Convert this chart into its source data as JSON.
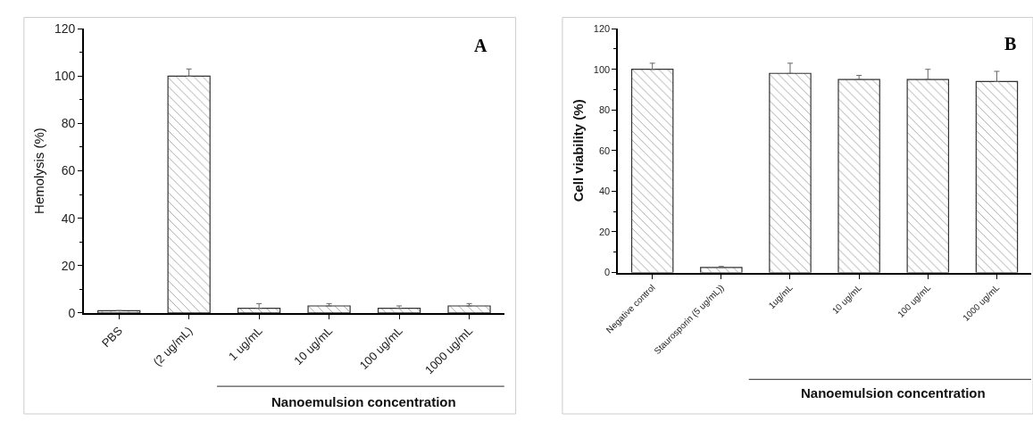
{
  "chart_data": [
    {
      "type": "bar",
      "ylabel": "Hemolysis (%)",
      "categories": [
        "PBS",
        "(2 ug/mL)",
        "1 ug/mL",
        "10 ug/mL",
        "100 ug/mL",
        "1000 ug/mL"
      ],
      "values": [
        1,
        100,
        2,
        3,
        2,
        3
      ],
      "errors": [
        null,
        [
          100,
          103
        ],
        [
          2,
          4
        ],
        [
          3,
          4
        ],
        [
          2,
          3
        ],
        [
          3,
          4
        ]
      ],
      "color": "#333333",
      "ylim": [
        0,
        120
      ],
      "yticks": [
        0,
        20,
        40,
        60,
        80,
        100,
        120
      ],
      "annotations": [
        "A",
        "Nanoemulsion concentration"
      ]
    },
    {
      "type": "bar",
      "ylabel": "Cell viability (%)",
      "categories": [
        "Negative control",
        "Staurosporin (5 ug/mL))",
        "1ug/mL",
        "10 ug/mL",
        "100 ug/mL",
        "1000 ug/mL"
      ],
      "values": [
        100,
        2.5,
        98,
        95,
        95,
        94
      ],
      "errors": [
        [
          100,
          103
        ],
        [
          2.5,
          3
        ],
        [
          98,
          103
        ],
        [
          95,
          97
        ],
        [
          95,
          100
        ],
        [
          94,
          99
        ]
      ],
      "color": "#333333",
      "ylim": [
        0,
        120
      ],
      "yticks": [
        0,
        20,
        40,
        60,
        80,
        100,
        120
      ],
      "annotations": [
        "B",
        "Nanoemulsion concentration"
      ]
    }
  ]
}
